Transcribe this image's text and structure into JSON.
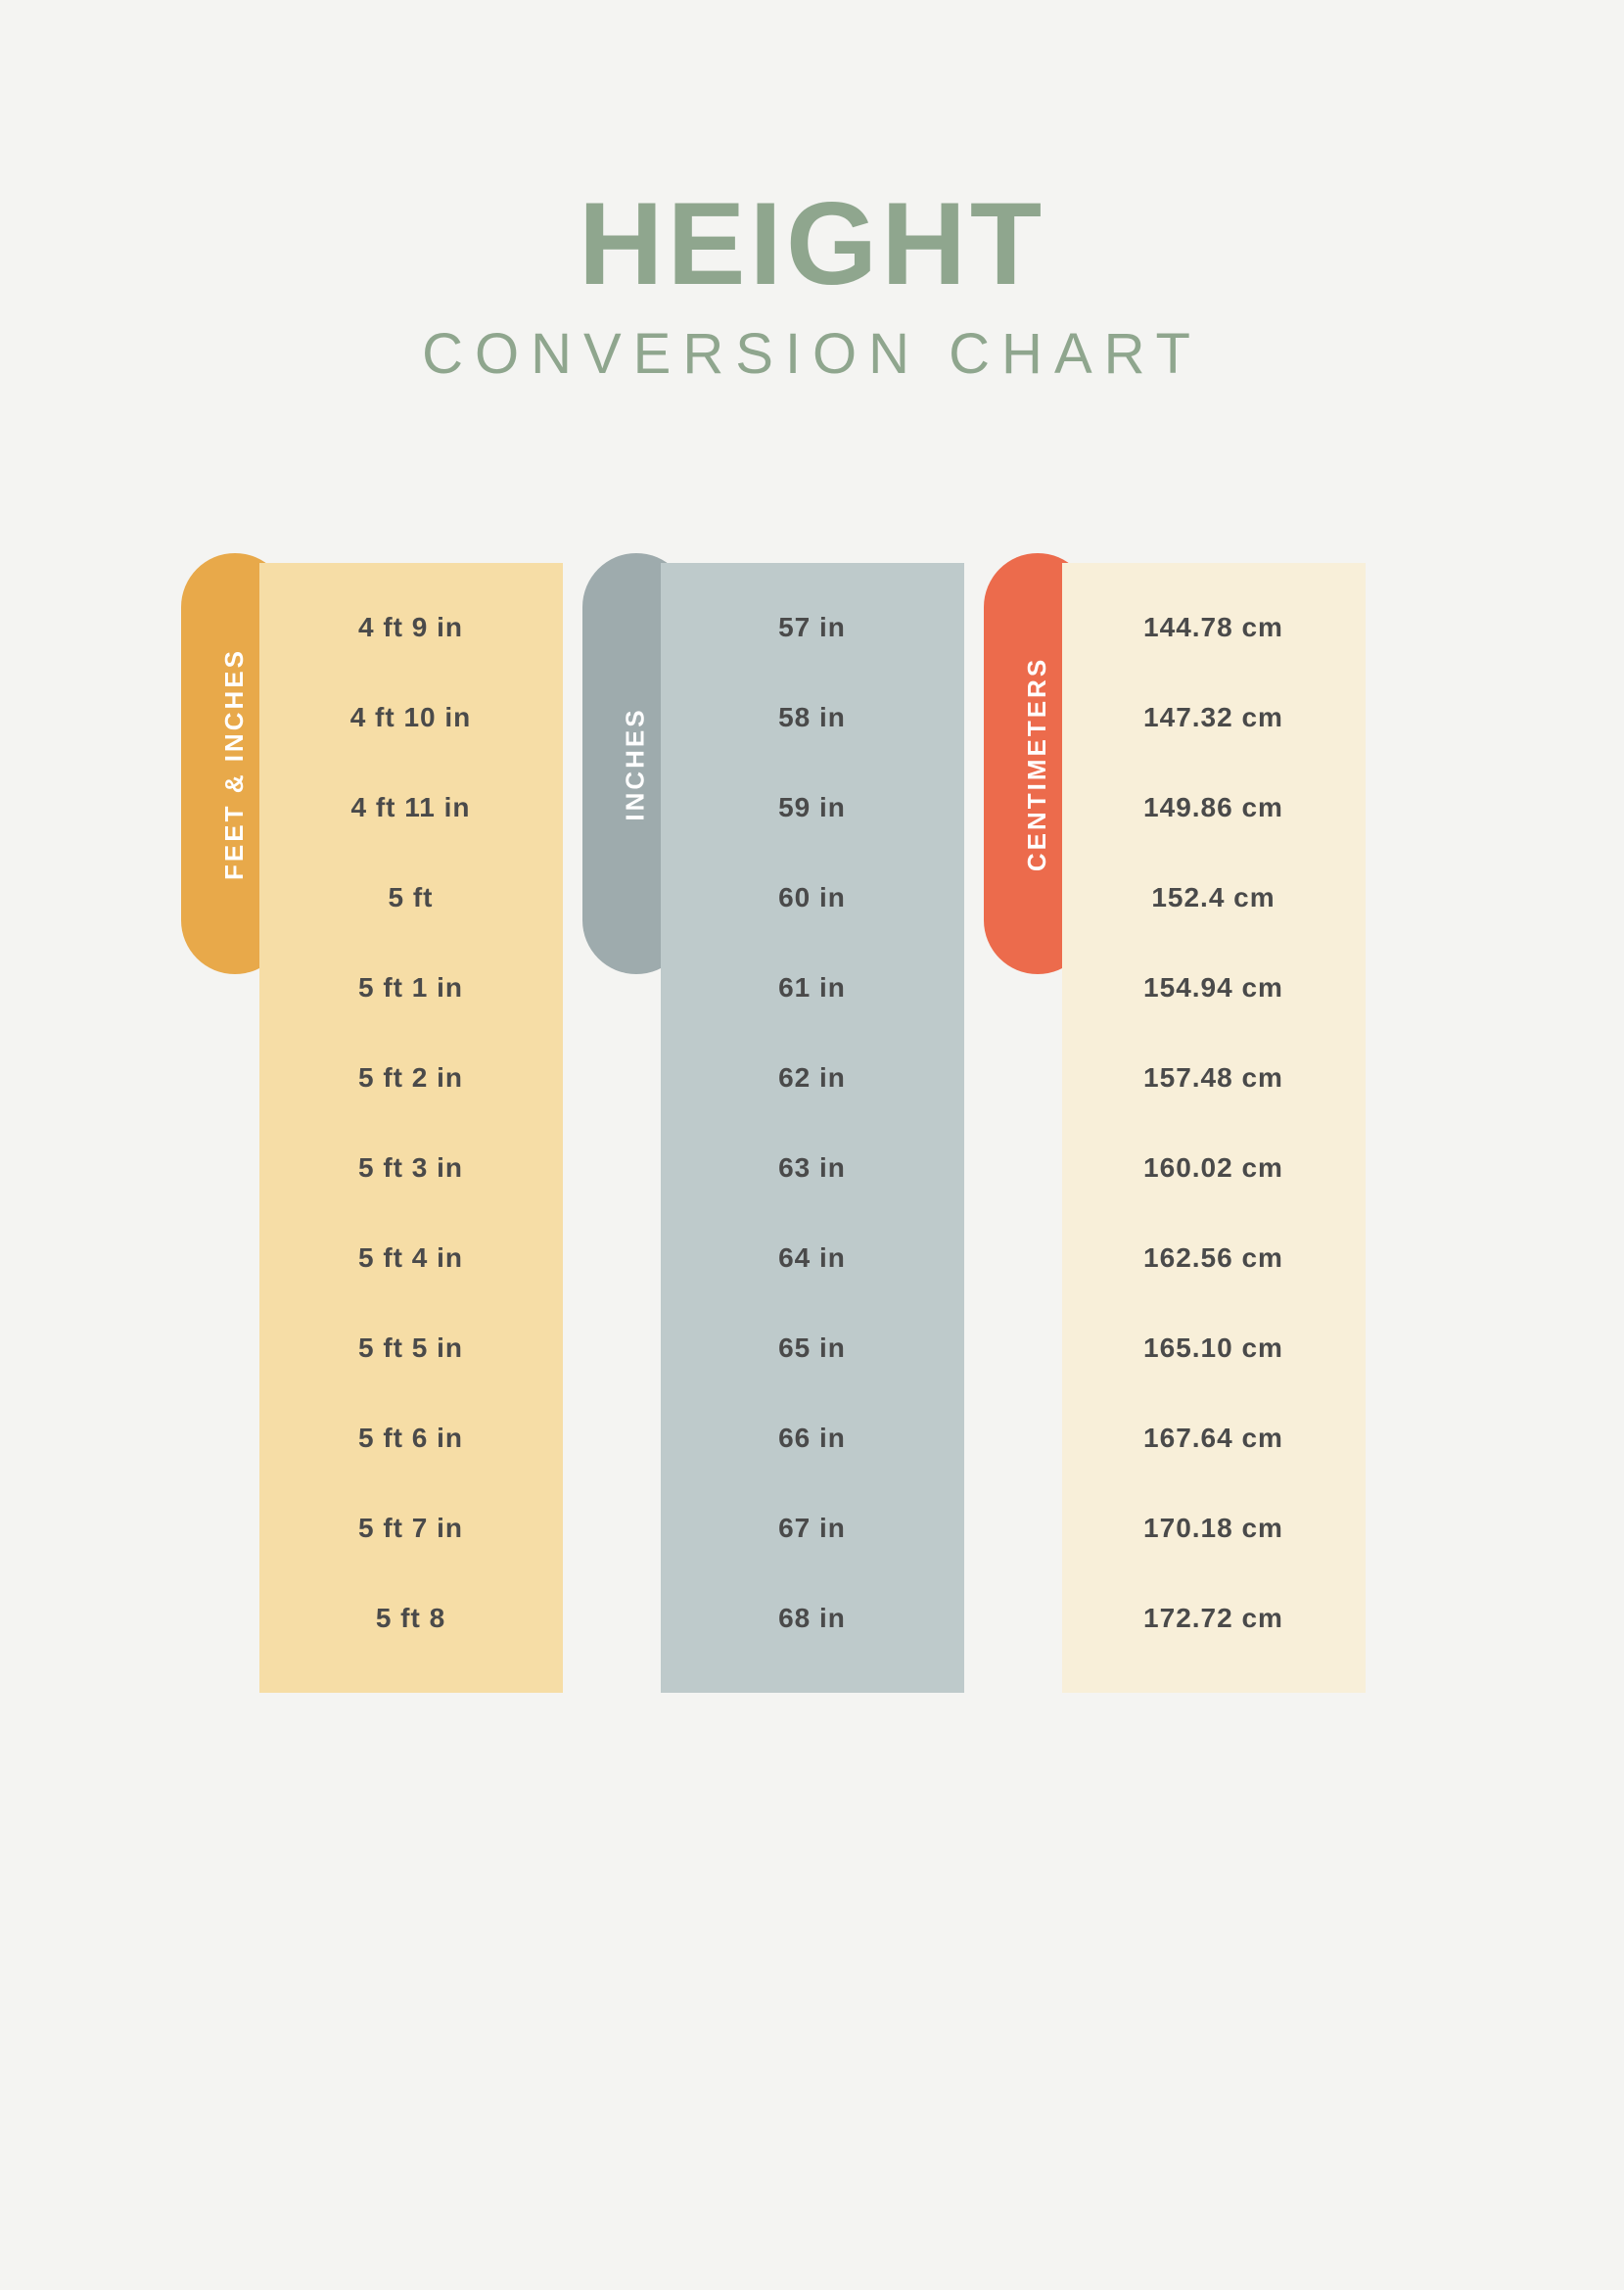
{
  "title": "HEIGHT",
  "subtitle": "CONVERSION CHART",
  "background_color": "#f4f4f2",
  "title_color": "#8fa68e",
  "title_fontsize": 120,
  "subtitle_fontsize": 58,
  "cell_fontsize": 28,
  "cell_text_color": "#4a4a4a",
  "label_text_color": "#ffffff",
  "columns": [
    {
      "label": "FEET & INCHES",
      "pill_color": "#e8a94a",
      "column_color": "#f6dda6",
      "values": [
        "4 ft 9 in",
        "4 ft 10 in",
        "4 ft 11 in",
        "5 ft",
        "5 ft 1 in",
        "5 ft 2 in",
        "5 ft 3 in",
        "5 ft 4 in",
        "5 ft 5 in",
        "5 ft 6 in",
        "5 ft 7 in",
        "5 ft 8"
      ]
    },
    {
      "label": "INCHES",
      "pill_color": "#9eabad",
      "column_color": "#becacb",
      "values": [
        "57 in",
        "58 in",
        "59 in",
        "60 in",
        "61 in",
        "62 in",
        "63 in",
        "64 in",
        "65 in",
        "66 in",
        "67 in",
        "68 in"
      ]
    },
    {
      "label": "CENTIMETERS",
      "pill_color": "#ec6b4c",
      "column_color": "#f8efd9",
      "values": [
        "144.78 cm",
        "147.32 cm",
        "149.86 cm",
        "152.4 cm",
        "154.94 cm",
        "157.48 cm",
        "160.02 cm",
        "162.56 cm",
        "165.10 cm",
        "167.64 cm",
        "170.18 cm",
        "172.72 cm"
      ]
    }
  ]
}
